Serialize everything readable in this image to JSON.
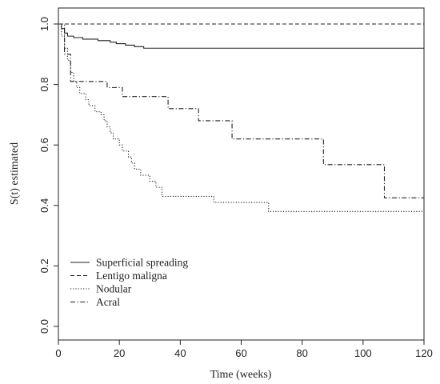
{
  "chart_data": {
    "type": "line",
    "subtype": "step",
    "title": "",
    "xlabel": "Time (weeks)",
    "ylabel": "S(t) estimated",
    "xlim": [
      0,
      120
    ],
    "ylim": [
      0,
      1.0
    ],
    "x_ticks": [
      "0",
      "20",
      "40",
      "60",
      "80",
      "100",
      "120"
    ],
    "y_ticks": [
      "0.0",
      "0.2",
      "0.4",
      "0.6",
      "0.8",
      "1.0"
    ],
    "grid": false,
    "legend_position": "bottom-left",
    "series": [
      {
        "name": "Superficial spreading",
        "dash": "solid",
        "points": [
          [
            0,
            1.0
          ],
          [
            1,
            0.985
          ],
          [
            2,
            0.97
          ],
          [
            3,
            0.96
          ],
          [
            5,
            0.955
          ],
          [
            8,
            0.95
          ],
          [
            13,
            0.945
          ],
          [
            17,
            0.94
          ],
          [
            19,
            0.935
          ],
          [
            22,
            0.93
          ],
          [
            25,
            0.925
          ],
          [
            28,
            0.92
          ],
          [
            120,
            0.92
          ]
        ]
      },
      {
        "name": "Lentigo maligna",
        "dash": "dashed",
        "points": [
          [
            0,
            1.0
          ],
          [
            120,
            1.0
          ]
        ]
      },
      {
        "name": "Nodular",
        "dash": "dotted",
        "points": [
          [
            0,
            1.0
          ],
          [
            1,
            0.96
          ],
          [
            2,
            0.92
          ],
          [
            3,
            0.88
          ],
          [
            4,
            0.84
          ],
          [
            5,
            0.81
          ],
          [
            6,
            0.79
          ],
          [
            7,
            0.77
          ],
          [
            9,
            0.75
          ],
          [
            10,
            0.73
          ],
          [
            12,
            0.71
          ],
          [
            14,
            0.7
          ],
          [
            15,
            0.68
          ],
          [
            16,
            0.66
          ],
          [
            17,
            0.64
          ],
          [
            18,
            0.62
          ],
          [
            20,
            0.6
          ],
          [
            21,
            0.58
          ],
          [
            23,
            0.56
          ],
          [
            24,
            0.54
          ],
          [
            25,
            0.52
          ],
          [
            27,
            0.5
          ],
          [
            30,
            0.48
          ],
          [
            32,
            0.46
          ],
          [
            34,
            0.43
          ],
          [
            51,
            0.41
          ],
          [
            69,
            0.38
          ],
          [
            120,
            0.38
          ]
        ]
      },
      {
        "name": "Acral",
        "dash": "dash-dot",
        "points": [
          [
            0,
            1.0
          ],
          [
            2,
            0.9
          ],
          [
            4,
            0.81
          ],
          [
            16,
            0.79
          ],
          [
            21,
            0.76
          ],
          [
            36,
            0.72
          ],
          [
            46,
            0.68
          ],
          [
            57,
            0.62
          ],
          [
            87,
            0.535
          ],
          [
            107,
            0.425
          ],
          [
            120,
            0.425
          ]
        ]
      }
    ]
  }
}
